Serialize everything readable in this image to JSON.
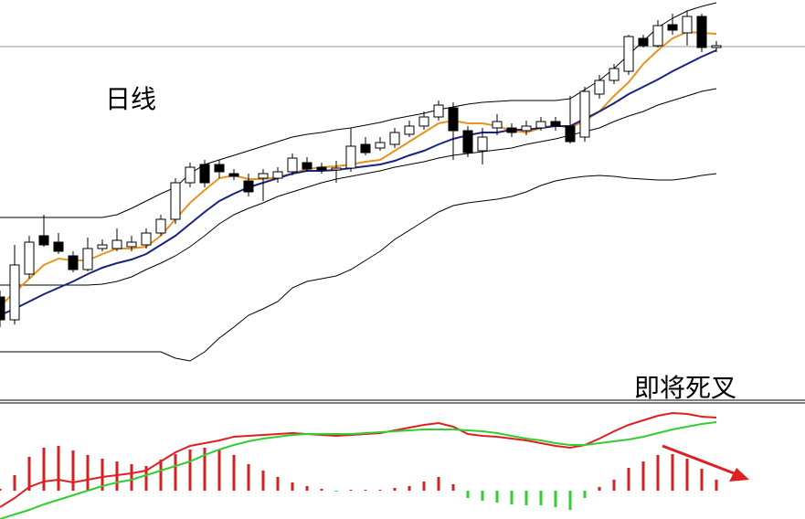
{
  "chart_data": [
    {
      "type": "candlestick",
      "annotation": "日线",
      "categories": [
        null,
        null,
        null,
        null,
        null,
        null,
        null,
        null,
        null,
        null,
        null,
        null,
        null,
        null,
        null,
        null,
        null,
        null,
        null,
        null,
        null,
        null,
        null,
        null,
        null,
        null,
        null,
        null,
        null,
        null,
        null,
        null,
        null,
        null,
        null,
        null,
        null,
        null,
        null,
        null,
        null,
        null,
        null,
        null,
        null,
        null,
        null,
        null,
        null,
        null
      ],
      "open": [
        115,
        90,
        140,
        182,
        175,
        160,
        145,
        168,
        168,
        170,
        172,
        185,
        200,
        240,
        260,
        260,
        250,
        242,
        245,
        245,
        252,
        262,
        257,
        254,
        256,
        282,
        278,
        282,
        293,
        302,
        312,
        322,
        297,
        275,
        300,
        300,
        297,
        300,
        307,
        302,
        290,
        337,
        352,
        362,
        398,
        390,
        413,
        404,
        422,
        388
      ],
      "high": [
        122,
        172,
        182,
        205,
        185,
        165,
        180,
        178,
        190,
        182,
        190,
        205,
        245,
        262,
        265,
        265,
        255,
        250,
        255,
        257,
        272,
        268,
        262,
        264,
        300,
        290,
        290,
        300,
        308,
        318,
        330,
        328,
        302,
        300,
        315,
        305,
        308,
        312,
        312,
        335,
        345,
        358,
        370,
        402,
        402,
        418,
        425,
        428,
        425,
        395
      ],
      "low": [
        82,
        85,
        135,
        170,
        162,
        142,
        143,
        165,
        165,
        165,
        168,
        182,
        195,
        235,
        235,
        245,
        243,
        225,
        220,
        240,
        248,
        252,
        250,
        240,
        252,
        270,
        275,
        278,
        290,
        298,
        308,
        265,
        268,
        260,
        292,
        290,
        292,
        297,
        297,
        283,
        285,
        332,
        348,
        358,
        388,
        388,
        402,
        390,
        383,
        383
      ],
      "close": [
        90,
        150,
        175,
        172,
        165,
        145,
        168,
        172,
        177,
        175,
        185,
        200,
        240,
        257,
        240,
        252,
        247,
        230,
        250,
        252,
        267,
        255,
        254,
        256,
        280,
        273,
        284,
        295,
        302,
        312,
        325,
        297,
        273,
        290,
        307,
        295,
        302,
        307,
        302,
        285,
        340,
        352,
        365,
        400,
        390,
        412,
        407,
        422,
        388,
        390
      ],
      "up_color": "#ffffff",
      "down_color": "#000000",
      "lines": [
        {
          "color": "#000000",
          "width": 1,
          "values": [
            202,
            202,
            202,
            202,
            202,
            202,
            202,
            202,
            205,
            212,
            220,
            228,
            235,
            250,
            260,
            265,
            270,
            275,
            280,
            285,
            290,
            293,
            295,
            298,
            300,
            303,
            306,
            310,
            313,
            316,
            320,
            323,
            326,
            328,
            329,
            330,
            330,
            330,
            330,
            332,
            342,
            352,
            365,
            380,
            395,
            410,
            420,
            428,
            433,
            437
          ]
        },
        {
          "color": "#000000",
          "width": 1,
          "values": [
            128,
            128,
            128,
            128,
            128,
            128,
            128,
            129,
            132,
            137,
            145,
            152,
            160,
            170,
            182,
            195,
            205,
            212,
            218,
            225,
            230,
            235,
            240,
            244,
            247,
            250,
            253,
            257,
            260,
            263,
            267,
            270,
            272,
            274,
            276,
            278,
            282,
            285,
            288,
            292,
            296,
            300,
            307,
            313,
            318,
            325,
            330,
            335,
            340,
            343
          ]
        },
        {
          "color": "#000000",
          "width": 1,
          "values": [
            55,
            55,
            55,
            55,
            55,
            55,
            55,
            55,
            55,
            55,
            55,
            55,
            48,
            45,
            55,
            70,
            82,
            95,
            102,
            110,
            125,
            132,
            135,
            138,
            145,
            155,
            165,
            178,
            188,
            198,
            208,
            215,
            218,
            220,
            222,
            225,
            230,
            237,
            242,
            245,
            247,
            248,
            247,
            245,
            244,
            243,
            243,
            245,
            248,
            250
          ]
        },
        {
          "color": "#e8931e",
          "width": 2,
          "values": [
            105,
            120,
            135,
            150,
            157,
            155,
            155,
            162,
            168,
            168,
            170,
            182,
            200,
            218,
            232,
            245,
            248,
            244,
            244,
            246,
            250,
            255,
            257,
            258,
            260,
            263,
            265,
            275,
            285,
            295,
            305,
            308,
            305,
            305,
            302,
            297,
            295,
            300,
            303,
            300,
            308,
            318,
            335,
            350,
            370,
            385,
            398,
            405,
            404,
            403
          ]
        },
        {
          "color": "#1a237e",
          "width": 2,
          "values": [
            95,
            102,
            110,
            118,
            125,
            132,
            140,
            147,
            152,
            156,
            162,
            172,
            182,
            195,
            208,
            220,
            228,
            235,
            240,
            245,
            250,
            253,
            253,
            254,
            256,
            258,
            260,
            264,
            270,
            275,
            282,
            288,
            292,
            295,
            295,
            298,
            298,
            300,
            302,
            302,
            310,
            318,
            327,
            337,
            345,
            353,
            362,
            370,
            378,
            385
          ]
        }
      ],
      "ylim": [
        0,
        440
      ]
    },
    {
      "type": "macd",
      "annotation": "即将死叉",
      "values": [
        2,
        17,
        37,
        47,
        49,
        44,
        39,
        35,
        32,
        29,
        27,
        34,
        40,
        45,
        47,
        45,
        39,
        29,
        22,
        15,
        9,
        5,
        2,
        -1,
        1,
        1,
        1,
        3,
        5,
        10,
        15,
        7,
        -8,
        -11,
        -13,
        -15,
        -16,
        -16,
        -18,
        -21,
        -8,
        4,
        12,
        25,
        32,
        39,
        40,
        35,
        24,
        12
      ],
      "positive_color": "#d42020",
      "negative_color": "#33cc33",
      "series": [
        {
          "color": "#e02020",
          "values": [
            -18,
            -8,
            4,
            10,
            12,
            9,
            12,
            15,
            17,
            19,
            22,
            32,
            42,
            49,
            52,
            55,
            59,
            60,
            61,
            62,
            63,
            62,
            61,
            60,
            61,
            62,
            63,
            66,
            69,
            72,
            74,
            70,
            62,
            60,
            59,
            57,
            55,
            52,
            49,
            47,
            50,
            57,
            65,
            72,
            77,
            82,
            85,
            84,
            81,
            80
          ]
        },
        {
          "color": "#33cc33",
          "values": [
            -31,
            -26,
            -21,
            -15,
            -10,
            -5,
            0,
            5,
            9,
            12,
            17,
            22,
            27,
            32,
            39,
            45,
            50,
            54,
            57,
            59,
            61,
            62,
            62,
            62,
            62,
            63,
            64,
            65,
            66,
            67,
            67,
            67,
            66,
            65,
            63,
            60,
            57,
            55,
            52,
            50,
            50,
            52,
            54,
            56,
            59,
            63,
            67,
            70,
            73,
            75
          ]
        }
      ],
      "ylim": [
        -31,
        95
      ]
    }
  ]
}
